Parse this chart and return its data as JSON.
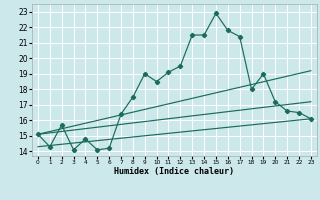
{
  "xlabel": "Humidex (Indice chaleur)",
  "bg_color": "#cce8ea",
  "grid_color": "#ffffff",
  "line_color": "#1a6b5a",
  "xlim": [
    -0.5,
    23.5
  ],
  "ylim": [
    13.7,
    23.5
  ],
  "xticks": [
    0,
    1,
    2,
    3,
    4,
    5,
    6,
    7,
    8,
    9,
    10,
    11,
    12,
    13,
    14,
    15,
    16,
    17,
    18,
    19,
    20,
    21,
    22,
    23
  ],
  "yticks": [
    14,
    15,
    16,
    17,
    18,
    19,
    20,
    21,
    22,
    23
  ],
  "main_x": [
    0,
    1,
    2,
    3,
    4,
    5,
    6,
    7,
    8,
    9,
    10,
    11,
    12,
    13,
    14,
    15,
    16,
    17,
    18,
    19,
    20,
    21,
    22,
    23
  ],
  "main_y": [
    15.1,
    14.3,
    15.7,
    14.1,
    14.8,
    14.1,
    14.2,
    16.4,
    17.5,
    19.0,
    18.5,
    19.1,
    19.5,
    21.5,
    21.5,
    22.9,
    21.8,
    21.4,
    18.0,
    19.0,
    17.2,
    16.6,
    16.5,
    16.1
  ],
  "line2_x": [
    0,
    23
  ],
  "line2_y": [
    15.1,
    19.2
  ],
  "line3_x": [
    0,
    23
  ],
  "line3_y": [
    15.1,
    17.2
  ],
  "line4_x": [
    0,
    23
  ],
  "line4_y": [
    14.3,
    16.1
  ]
}
